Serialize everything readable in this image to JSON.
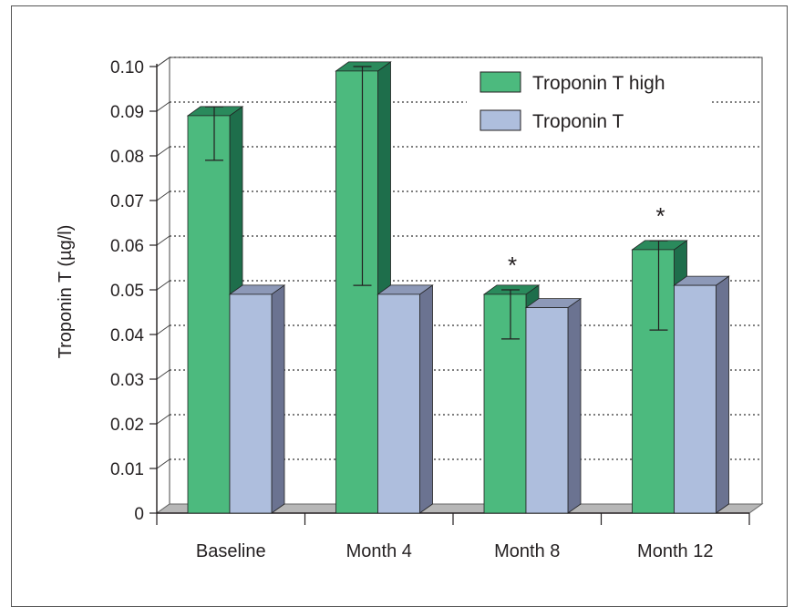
{
  "chart_data": {
    "type": "bar",
    "title": "",
    "xlabel": "",
    "ylabel": "Troponin T (µg/l)",
    "categories": [
      "Baseline",
      "Month 4",
      "Month 8",
      "Month 12"
    ],
    "series": [
      {
        "name": "Troponin T high",
        "values": [
          0.089,
          0.099,
          0.049,
          0.059
        ],
        "error_low": [
          0.079,
          0.051,
          0.039,
          0.041
        ],
        "error_high": [
          0.091,
          0.1,
          0.05,
          0.061
        ]
      },
      {
        "name": "Troponin T",
        "values": [
          0.049,
          0.049,
          0.046,
          0.051
        ]
      }
    ],
    "significance_marks": [
      "",
      "",
      "*",
      "*"
    ],
    "ylim": [
      0,
      0.1
    ],
    "yticks": [
      "0",
      "0.01",
      "0.02",
      "0.03",
      "0.04",
      "0.05",
      "0.06",
      "0.07",
      "0.08",
      "0.09",
      "0.10"
    ],
    "grid": true,
    "legend_position": "top-right",
    "colors": {
      "series1_front": "#4cba7e",
      "series1_side": "#1e6e4b",
      "series1_top": "#2a8a5c",
      "series2_front": "#aebedd",
      "series2_side": "#6b7391",
      "series2_top": "#8d99b8",
      "floor": "#b7b7b7"
    }
  }
}
